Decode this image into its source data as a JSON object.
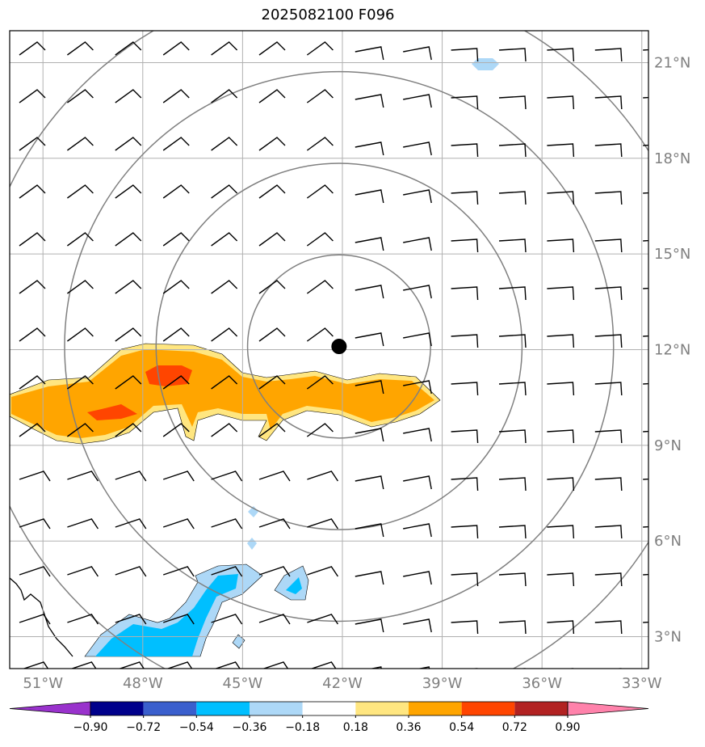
{
  "title": "2025082100 F096",
  "map": {
    "lon_range": [
      -52.0,
      -32.8
    ],
    "lat_range": [
      2.0,
      22.0
    ],
    "lon_ticks": [
      {
        "value": -51,
        "label": "51°W"
      },
      {
        "value": -48,
        "label": "48°W"
      },
      {
        "value": -45,
        "label": "45°W"
      },
      {
        "value": -42,
        "label": "42°W"
      },
      {
        "value": -39,
        "label": "39°W"
      },
      {
        "value": -36,
        "label": "36°W"
      },
      {
        "value": -33,
        "label": "33°W"
      }
    ],
    "lat_ticks": [
      {
        "value": 3,
        "label": "3°N"
      },
      {
        "value": 6,
        "label": "6°N"
      },
      {
        "value": 9,
        "label": "9°N"
      },
      {
        "value": 12,
        "label": "12°N"
      },
      {
        "value": 15,
        "label": "15°N"
      },
      {
        "value": 18,
        "label": "18°N"
      },
      {
        "value": 21,
        "label": "21°N"
      }
    ],
    "center": {
      "lon": -42.1,
      "lat": 12.1
    },
    "range_ring_radii_deg": [
      2.75,
      5.5,
      8.25,
      11.0
    ],
    "colors": {
      "grid": "#b0b0b0",
      "ring": "#808080",
      "label": "#808080",
      "positive_light": "#ffe680",
      "positive_mid": "#ffa500",
      "positive_strong": "#ff4500",
      "negative_light": "#add8f7",
      "negative_mid": "#00bfff"
    }
  },
  "colorbar": {
    "colors": [
      "#9932cc",
      "#00008b",
      "#3a5fcd",
      "#00bfff",
      "#add8f7",
      "#ffffff",
      "#ffe680",
      "#ffa500",
      "#ff4500",
      "#b22222",
      "#ff82ab"
    ],
    "labels": [
      "−0.90",
      "−0.72",
      "−0.54",
      "−0.36",
      "−0.18",
      "0.18",
      "0.36",
      "0.54",
      "0.72",
      "0.90"
    ]
  }
}
